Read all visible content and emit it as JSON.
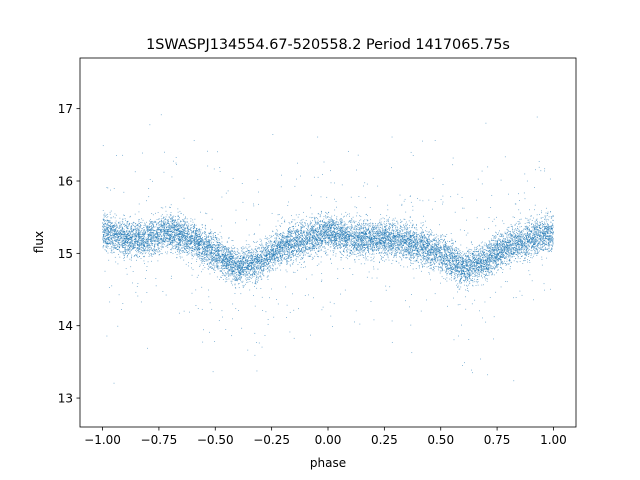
{
  "chart_data": {
    "type": "scatter",
    "title": "1SWASPJ134554.67-520558.2 Period 1417065.75s",
    "xlabel": "phase",
    "ylabel": "flux",
    "xlim": [
      -1.1,
      1.1
    ],
    "ylim": [
      12.6,
      17.7
    ],
    "xticks": [
      -1.0,
      -0.75,
      -0.5,
      -0.25,
      0.0,
      0.25,
      0.5,
      0.75,
      1.0
    ],
    "xtick_labels": [
      "−1.00",
      "−0.75",
      "−0.50",
      "−0.25",
      "0.00",
      "0.25",
      "0.50",
      "0.75",
      "1.00"
    ],
    "yticks": [
      13,
      14,
      15,
      16,
      17
    ],
    "ytick_labels": [
      "13",
      "14",
      "15",
      "16",
      "17"
    ],
    "grid": false,
    "legend": "none",
    "marker_color": "#1f77b4",
    "series": [
      {
        "x_range": [
          -1.0,
          1.0
        ],
        "median_profile": {
          "phase": [
            -1.0,
            -0.9,
            -0.8,
            -0.7,
            -0.6,
            -0.5,
            -0.4,
            -0.3,
            -0.2,
            -0.1,
            0.0,
            0.1,
            0.2,
            0.3,
            0.4,
            0.5,
            0.6,
            0.7,
            0.8,
            0.9,
            1.0
          ],
          "flux": [
            15.3,
            15.2,
            15.2,
            15.3,
            15.2,
            15.0,
            14.8,
            14.9,
            15.1,
            15.2,
            15.3,
            15.2,
            15.2,
            15.2,
            15.1,
            15.0,
            14.8,
            14.9,
            15.1,
            15.2,
            15.3
          ]
        },
        "flux_spread": [
          12.9,
          17.4
        ],
        "approx_points": 14000
      }
    ]
  }
}
